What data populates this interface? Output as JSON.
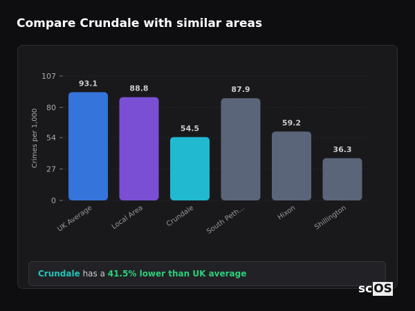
{
  "title": "Compare Crundale with similar areas",
  "chart_data": {
    "type": "bar",
    "categories": [
      "UK Average",
      "Local Area",
      "Crundale",
      "South Peth...",
      "Hixon",
      "Shillington"
    ],
    "values": [
      93.1,
      88.8,
      54.5,
      87.9,
      59.2,
      36.3
    ],
    "colors": [
      "#3574db",
      "#7b4fd4",
      "#20b9d0",
      "#5a6579",
      "#5a6579",
      "#5a6579"
    ],
    "ylabel": "Crimes per 1,000",
    "yticks": [
      0,
      27,
      54,
      80,
      107
    ],
    "ylim": [
      0,
      107
    ],
    "grid": true
  },
  "callout": {
    "area": "Crundale",
    "text": " has a ",
    "highlight": "41.5% lower than UK average"
  },
  "logo": {
    "a": "sc",
    "b": "OS"
  }
}
